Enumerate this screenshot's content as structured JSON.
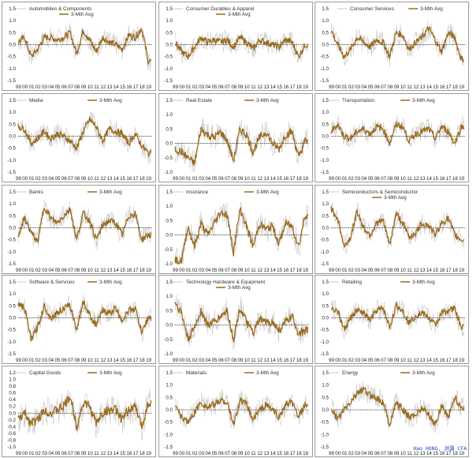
{
  "watermark": "Hao HONG, 洪灝 CFA",
  "colors": {
    "raw": "#c9c9c9",
    "avg": "#9b6a1e",
    "zero": "#222222",
    "frame": "#9a9a9a"
  },
  "x_tick_labels": [
    "99",
    "00",
    "01",
    "02",
    "03",
    "04",
    "05",
    "06",
    "07",
    "08",
    "09",
    "10",
    "11",
    "12",
    "13",
    "14",
    "15",
    "16",
    "17",
    "18",
    "19"
  ],
  "legend_raw": "",
  "legend_avg": "3-Mth Avg",
  "chart_data": [
    {
      "type": "line",
      "title": "Automobiles & Components",
      "ylim": [
        -1.5,
        1.5
      ],
      "yticks": [
        "1.5",
        "1.0",
        "0.5",
        "0.0",
        "-0.5",
        "-1.0",
        "-1.5"
      ],
      "x": [
        1999,
        2000,
        2001,
        2002,
        2003,
        2004,
        2005,
        2006,
        2007,
        2008,
        2009,
        2010,
        2011,
        2012,
        2013,
        2014,
        2015,
        2016,
        2017,
        2018,
        2019
      ],
      "series": [
        {
          "name": "3-Mth Avg",
          "values": [
            0.1,
            0.3,
            -0.5,
            -0.2,
            0.3,
            0.3,
            0.2,
            0.3,
            0.5,
            -0.4,
            0.6,
            0.2,
            -0.3,
            0.3,
            0.1,
            0.0,
            -0.2,
            0.4,
            0.3,
            0.7,
            -0.7
          ]
        }
      ]
    },
    {
      "type": "line",
      "title": "Consumer Durables & Apparel",
      "ylim": [
        -1.5,
        1.5
      ],
      "yticks": [
        "1.5",
        "1.0",
        "0.5",
        "0.0",
        "-0.5",
        "-1.0",
        "-1.5"
      ],
      "x": [
        1999,
        2000,
        2001,
        2002,
        2003,
        2004,
        2005,
        2006,
        2007,
        2008,
        2009,
        2010,
        2011,
        2012,
        2013,
        2014,
        2015,
        2016,
        2017,
        2018,
        2019
      ],
      "series": [
        {
          "name": "3-Mth Avg",
          "values": [
            0.1,
            -0.3,
            -0.5,
            -0.1,
            0.3,
            0.1,
            0.2,
            0.1,
            0.2,
            -0.1,
            0.3,
            0.1,
            -0.2,
            0.2,
            0.1,
            0.0,
            -0.1,
            0.2,
            0.1,
            -0.5,
            0.0
          ]
        }
      ]
    },
    {
      "type": "line",
      "title": "Consumer Services",
      "ylim": [
        -1.5,
        1.5
      ],
      "yticks": [
        "1.5",
        "1.0",
        "0.5",
        "0.0",
        "-0.5",
        "-1.0",
        "-1.5"
      ],
      "x": [
        1999,
        2000,
        2001,
        2002,
        2003,
        2004,
        2005,
        2006,
        2007,
        2008,
        2009,
        2010,
        2011,
        2012,
        2013,
        2014,
        2015,
        2016,
        2017,
        2018,
        2019
      ],
      "series": [
        {
          "name": "3-Mth Avg",
          "values": [
            0.6,
            0.0,
            -0.5,
            -0.2,
            0.3,
            0.1,
            -0.1,
            0.2,
            0.1,
            -0.5,
            0.5,
            0.4,
            -0.2,
            0.1,
            0.3,
            0.7,
            0.2,
            -0.3,
            0.5,
            0.3,
            -0.6
          ]
        }
      ]
    },
    {
      "type": "line",
      "title": "Media",
      "ylim": [
        -1.5,
        1.5
      ],
      "yticks": [
        "1.5",
        "1.0",
        "0.5",
        "0.0",
        "-0.5",
        "-1.0",
        "-1.5"
      ],
      "x": [
        1999,
        2000,
        2001,
        2002,
        2003,
        2004,
        2005,
        2006,
        2007,
        2008,
        2009,
        2010,
        2011,
        2012,
        2013,
        2014,
        2015,
        2016,
        2017,
        2018,
        2019
      ],
      "series": [
        {
          "name": "3-Mth Avg",
          "values": [
            0.4,
            0.3,
            -0.3,
            -0.1,
            0.2,
            -0.1,
            0.1,
            0.0,
            -0.2,
            -0.5,
            0.2,
            0.7,
            0.4,
            -0.2,
            0.3,
            0.2,
            0.1,
            -0.3,
            0.1,
            -0.4,
            -0.7
          ]
        }
      ]
    },
    {
      "type": "line",
      "title": "Real Estate",
      "ylim": [
        -1.0,
        1.5
      ],
      "yticks": [
        "1.5",
        "1.0",
        "0.5",
        "0.0",
        "-0.5",
        "-1.0"
      ],
      "x": [
        1999,
        2000,
        2001,
        2002,
        2003,
        2004,
        2005,
        2006,
        2007,
        2008,
        2009,
        2010,
        2011,
        2012,
        2013,
        2014,
        2015,
        2016,
        2017,
        2018,
        2019
      ],
      "series": [
        {
          "name": "3-Mth Avg",
          "values": [
            -0.2,
            -0.3,
            -0.5,
            -0.7,
            0.5,
            0.3,
            0.2,
            0.4,
            0.1,
            -0.6,
            0.5,
            0.3,
            -0.3,
            0.2,
            0.4,
            0.0,
            -0.2,
            0.3,
            0.4,
            -0.5,
            0.1
          ]
        }
      ]
    },
    {
      "type": "line",
      "title": "Transportation",
      "ylim": [
        -1.5,
        1.5
      ],
      "yticks": [
        "1.5",
        "1.0",
        "0.5",
        "0.0",
        "-0.5",
        "-1.0",
        "-1.5"
      ],
      "x": [
        1999,
        2000,
        2001,
        2002,
        2003,
        2004,
        2005,
        2006,
        2007,
        2008,
        2009,
        2010,
        2011,
        2012,
        2013,
        2014,
        2015,
        2016,
        2017,
        2018,
        2019
      ],
      "series": [
        {
          "name": "3-Mth Avg",
          "values": [
            0.2,
            0.5,
            0.0,
            -0.1,
            0.2,
            0.3,
            0.1,
            0.4,
            0.3,
            -0.3,
            0.5,
            0.4,
            -0.2,
            0.1,
            0.2,
            0.3,
            -0.1,
            0.4,
            0.2,
            -0.3,
            0.4
          ]
        }
      ]
    },
    {
      "type": "line",
      "title": "Banks",
      "ylim": [
        -1.5,
        1.5
      ],
      "yticks": [
        "1.5",
        "1.0",
        "0.5",
        "0.0",
        "-0.5",
        "-1.0",
        "-1.5"
      ],
      "x": [
        1999,
        2000,
        2001,
        2002,
        2003,
        2004,
        2005,
        2006,
        2007,
        2008,
        2009,
        2010,
        2011,
        2012,
        2013,
        2014,
        2015,
        2016,
        2017,
        2018,
        2019
      ],
      "series": [
        {
          "name": "3-Mth Avg",
          "values": [
            -0.3,
            0.4,
            -0.2,
            -0.6,
            0.9,
            0.4,
            0.2,
            0.5,
            0.8,
            -0.5,
            0.6,
            0.3,
            -0.5,
            0.1,
            0.3,
            0.2,
            -0.3,
            0.5,
            0.6,
            -0.5,
            -0.3
          ]
        }
      ]
    },
    {
      "type": "line",
      "title": "Insurance",
      "ylim": [
        -1.0,
        1.5
      ],
      "yticks": [
        "1.5",
        "1.0",
        "0.5",
        "0.0",
        "-0.5",
        "-1.0"
      ],
      "x": [
        1999,
        2000,
        2001,
        2002,
        2003,
        2004,
        2005,
        2006,
        2007,
        2008,
        2009,
        2010,
        2011,
        2012,
        2013,
        2014,
        2015,
        2016,
        2017,
        2018,
        2019
      ],
      "series": [
        {
          "name": "3-Mth Avg",
          "values": [
            -0.9,
            -0.9,
            0.3,
            -0.4,
            0.4,
            0.0,
            0.4,
            0.8,
            0.7,
            -0.6,
            0.9,
            0.3,
            -0.4,
            0.4,
            0.2,
            0.3,
            -0.3,
            0.4,
            0.3,
            -0.4,
            0.7
          ]
        }
      ]
    },
    {
      "type": "line",
      "title": "Semiconductors & Semiconductor",
      "ylim": [
        -1.5,
        1.5
      ],
      "yticks": [
        "1.5",
        "1.0",
        "0.5",
        "0.0",
        "-0.5",
        "-1.0",
        "-1.5"
      ],
      "x": [
        1999,
        2000,
        2001,
        2002,
        2003,
        2004,
        2005,
        2006,
        2007,
        2008,
        2009,
        2010,
        2011,
        2012,
        2013,
        2014,
        2015,
        2016,
        2017,
        2018,
        2019
      ],
      "series": [
        {
          "name": "3-Mth Avg",
          "values": [
            0.8,
            0.4,
            -0.8,
            -0.4,
            0.7,
            0.0,
            -0.3,
            0.2,
            0.3,
            -0.7,
            0.6,
            0.2,
            -0.4,
            -0.2,
            0.2,
            0.1,
            -0.3,
            0.2,
            0.4,
            -0.3,
            -0.5
          ]
        }
      ]
    },
    {
      "type": "line",
      "title": "Software & Services",
      "ylim": [
        -1.5,
        1.5
      ],
      "yticks": [
        "1.5",
        "1.0",
        "0.5",
        "0.0",
        "-0.5",
        "-1.0",
        "-1.5"
      ],
      "x": [
        1999,
        2000,
        2001,
        2002,
        2003,
        2004,
        2005,
        2006,
        2007,
        2008,
        2009,
        2010,
        2011,
        2012,
        2013,
        2014,
        2015,
        2016,
        2017,
        2018,
        2019
      ],
      "series": [
        {
          "name": "3-Mth Avg",
          "values": [
            0.6,
            0.4,
            -0.9,
            -0.4,
            0.5,
            0.0,
            0.2,
            0.4,
            0.5,
            -0.5,
            0.7,
            0.1,
            -0.3,
            0.3,
            0.2,
            0.4,
            -0.1,
            0.3,
            0.4,
            -0.6,
            0.0
          ]
        }
      ]
    },
    {
      "type": "line",
      "title": "Technology Hardware & Equipment",
      "ylim": [
        -1.0,
        1.5
      ],
      "yticks": [
        "1.5",
        "1.0",
        "0.5",
        "0.0",
        "-0.5",
        "-1.0"
      ],
      "x": [
        1999,
        2000,
        2001,
        2002,
        2003,
        2004,
        2005,
        2006,
        2007,
        2008,
        2009,
        2010,
        2011,
        2012,
        2013,
        2014,
        2015,
        2016,
        2017,
        2018,
        2019
      ],
      "series": [
        {
          "name": "3-Mth Avg",
          "values": [
            0.8,
            0.4,
            -0.5,
            -0.1,
            0.5,
            0.0,
            0.1,
            0.3,
            0.5,
            -0.5,
            0.6,
            0.1,
            -0.3,
            0.2,
            0.1,
            0.1,
            -0.2,
            0.1,
            0.3,
            -0.3,
            -0.2
          ]
        }
      ]
    },
    {
      "type": "line",
      "title": "Retailing",
      "ylim": [
        -1.5,
        1.5
      ],
      "yticks": [
        "1.5",
        "1.0",
        "0.5",
        "0.0",
        "-0.5",
        "-1.0",
        "-1.5"
      ],
      "x": [
        1999,
        2000,
        2001,
        2002,
        2003,
        2004,
        2005,
        2006,
        2007,
        2008,
        2009,
        2010,
        2011,
        2012,
        2013,
        2014,
        2015,
        2016,
        2017,
        2018,
        2019
      ],
      "series": [
        {
          "name": "3-Mth Avg",
          "values": [
            0.4,
            0.3,
            -0.5,
            0.0,
            0.3,
            0.2,
            -0.1,
            0.3,
            0.4,
            -0.4,
            0.5,
            0.3,
            -0.2,
            0.1,
            0.2,
            0.0,
            -0.3,
            0.2,
            0.3,
            0.4,
            -0.4
          ]
        }
      ]
    },
    {
      "type": "line",
      "title": "Capital Goods",
      "ylim": [
        -1.0,
        1.2
      ],
      "yticks": [
        "1.2",
        "1.0",
        "0.8",
        "0.6",
        "0.4",
        "0.2",
        "0.0",
        "-0.2",
        "-0.4",
        "-0.6",
        "-0.8",
        "-1.0"
      ],
      "x": [
        1999,
        2000,
        2001,
        2002,
        2003,
        2004,
        2005,
        2006,
        2007,
        2008,
        2009,
        2010,
        2011,
        2012,
        2013,
        2014,
        2015,
        2016,
        2017,
        2018,
        2019
      ],
      "series": [
        {
          "name": "3-Mth Avg",
          "values": [
            -0.2,
            0.0,
            -0.3,
            -0.2,
            0.1,
            0.0,
            0.1,
            0.2,
            0.5,
            -0.4,
            0.3,
            0.2,
            -0.3,
            0.0,
            0.1,
            0.1,
            -0.2,
            0.1,
            0.2,
            -0.4,
            0.3
          ]
        }
      ]
    },
    {
      "type": "line",
      "title": "Materials",
      "ylim": [
        -1.5,
        1.5
      ],
      "yticks": [
        "1.5",
        "1.0",
        "0.5",
        "0.0",
        "-0.5",
        "-1.0",
        "-1.5"
      ],
      "x": [
        1999,
        2000,
        2001,
        2002,
        2003,
        2004,
        2005,
        2006,
        2007,
        2008,
        2009,
        2010,
        2011,
        2012,
        2013,
        2014,
        2015,
        2016,
        2017,
        2018,
        2019
      ],
      "series": [
        {
          "name": "3-Mth Avg",
          "values": [
            0.2,
            -0.3,
            -0.5,
            -0.1,
            0.3,
            0.1,
            0.2,
            0.4,
            0.3,
            -0.6,
            0.4,
            0.2,
            -0.4,
            0.0,
            0.2,
            0.0,
            -0.3,
            0.2,
            0.3,
            -0.3,
            0.2
          ]
        }
      ]
    },
    {
      "type": "line",
      "title": "Energy",
      "ylim": [
        -1.5,
        1.5
      ],
      "yticks": [
        "1.5",
        "1.0",
        "0.5",
        "0.0",
        "-0.5",
        "-1.0",
        "-1.5"
      ],
      "x": [
        1999,
        2000,
        2001,
        2002,
        2003,
        2004,
        2005,
        2006,
        2007,
        2008,
        2009,
        2010,
        2011,
        2012,
        2013,
        2014,
        2015,
        2016,
        2017,
        2018,
        2019
      ],
      "series": [
        {
          "name": "3-Mth Avg",
          "values": [
            0.1,
            -0.4,
            0.0,
            0.3,
            0.7,
            0.8,
            0.6,
            0.5,
            0.3,
            -0.6,
            0.3,
            0.0,
            -0.3,
            -0.2,
            0.1,
            -0.2,
            -0.6,
            0.2,
            -0.3,
            0.5,
            0.1
          ]
        }
      ]
    }
  ]
}
